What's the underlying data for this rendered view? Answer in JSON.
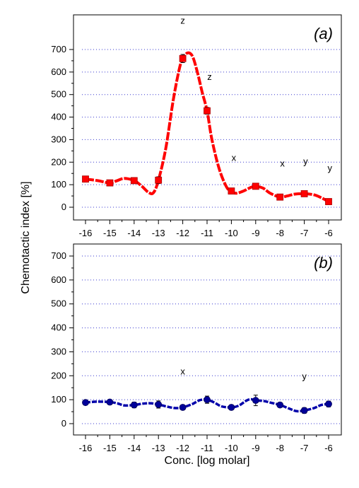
{
  "chart_data": [
    {
      "type": "line",
      "panel_label": "(a)",
      "ylabel": "Chemotactic index [%]",
      "xlabel": "Conc. [log molar]",
      "x_ticks": [
        "-16",
        "-15",
        "-14",
        "-13",
        "-12",
        "-11",
        "-10",
        "-9",
        "-8",
        "-7",
        "-6"
      ],
      "y_ticks": [
        "0",
        "100",
        "200",
        "300",
        "400",
        "500",
        "600",
        "700"
      ],
      "xlim": [
        -16.3,
        -5.6
      ],
      "ylim": [
        -50,
        750
      ],
      "grid": "horizontal-dotted",
      "series_color": "#ff0000",
      "marker_color": "#ff0000",
      "marker": "square",
      "points": [
        {
          "x": -16,
          "y": 125,
          "err": 10
        },
        {
          "x": -15,
          "y": 108,
          "err": 10
        },
        {
          "x": -14,
          "y": 118,
          "err": 8
        },
        {
          "x": -13,
          "y": 120,
          "err": 15
        },
        {
          "x": -12,
          "y": 660,
          "err": 18
        },
        {
          "x": -11,
          "y": 428,
          "err": 15
        },
        {
          "x": -10,
          "y": 72,
          "err": 12
        },
        {
          "x": -9,
          "y": 93,
          "err": 12
        },
        {
          "x": -8,
          "y": 45,
          "err": 12
        },
        {
          "x": -7,
          "y": 60,
          "err": 8
        },
        {
          "x": -6,
          "y": 25,
          "err": 8
        }
      ],
      "curve": [
        [
          -16,
          125
        ],
        [
          -15.5,
          118
        ],
        [
          -15,
          108
        ],
        [
          -14.7,
          118
        ],
        [
          -14.4,
          128
        ],
        [
          -14,
          118
        ],
        [
          -13.7,
          95
        ],
        [
          -13.4,
          65
        ],
        [
          -13.2,
          65
        ],
        [
          -13,
          120
        ],
        [
          -12.7,
          260
        ],
        [
          -12.4,
          470
        ],
        [
          -12.15,
          610
        ],
        [
          -12,
          660
        ],
        [
          -11.8,
          685
        ],
        [
          -11.6,
          670
        ],
        [
          -11.4,
          600
        ],
        [
          -11.2,
          510
        ],
        [
          -11,
          428
        ],
        [
          -10.8,
          300
        ],
        [
          -10.5,
          170
        ],
        [
          -10.2,
          90
        ],
        [
          -10,
          70
        ],
        [
          -9.8,
          62
        ],
        [
          -9.5,
          72
        ],
        [
          -9.2,
          88
        ],
        [
          -9,
          93
        ],
        [
          -8.7,
          85
        ],
        [
          -8.4,
          62
        ],
        [
          -8,
          45
        ],
        [
          -7.7,
          50
        ],
        [
          -7.4,
          58
        ],
        [
          -7,
          60
        ],
        [
          -6.6,
          55
        ],
        [
          -6.3,
          42
        ],
        [
          -6,
          25
        ]
      ],
      "annotations": [
        {
          "text": "z",
          "x": -12,
          "y": 815
        },
        {
          "text": "z",
          "x": -10.9,
          "y": 565
        },
        {
          "text": "x",
          "x": -9.9,
          "y": 205
        },
        {
          "text": "x",
          "x": -7.9,
          "y": 180
        },
        {
          "text": "y",
          "x": -6.95,
          "y": 190
        },
        {
          "text": "y",
          "x": -5.95,
          "y": 160
        }
      ]
    },
    {
      "type": "line",
      "panel_label": "(b)",
      "x_ticks": [
        "-16",
        "-15",
        "-14",
        "-13",
        "-12",
        "-11",
        "-10",
        "-9",
        "-8",
        "-7",
        "-6"
      ],
      "y_ticks": [
        "0",
        "100",
        "200",
        "300",
        "400",
        "500",
        "600",
        "700"
      ],
      "xlim": [
        -16.3,
        -5.6
      ],
      "ylim": [
        -50,
        750
      ],
      "grid": "horizontal-dotted",
      "series_color": "#0000aa",
      "marker_color": "#000099",
      "marker": "circle",
      "points": [
        {
          "x": -16,
          "y": 88,
          "err": 10
        },
        {
          "x": -15,
          "y": 90,
          "err": 8
        },
        {
          "x": -14,
          "y": 78,
          "err": 12
        },
        {
          "x": -13,
          "y": 80,
          "err": 15
        },
        {
          "x": -12,
          "y": 68,
          "err": 5
        },
        {
          "x": -11,
          "y": 100,
          "err": 15
        },
        {
          "x": -10,
          "y": 68,
          "err": 8
        },
        {
          "x": -9,
          "y": 97,
          "err": 22
        },
        {
          "x": -8,
          "y": 78,
          "err": 10
        },
        {
          "x": -7,
          "y": 55,
          "err": 12
        },
        {
          "x": -6,
          "y": 82,
          "err": 12
        }
      ],
      "curve": [
        [
          -16,
          88
        ],
        [
          -15.5,
          92
        ],
        [
          -15,
          90
        ],
        [
          -14.7,
          85
        ],
        [
          -14.4,
          76
        ],
        [
          -14,
          78
        ],
        [
          -13.6,
          84
        ],
        [
          -13.3,
          85
        ],
        [
          -13,
          80
        ],
        [
          -12.6,
          70
        ],
        [
          -12.3,
          65
        ],
        [
          -12,
          68
        ],
        [
          -11.6,
          82
        ],
        [
          -11.3,
          98
        ],
        [
          -11,
          100
        ],
        [
          -10.7,
          88
        ],
        [
          -10.4,
          72
        ],
        [
          -10,
          68
        ],
        [
          -9.7,
          75
        ],
        [
          -9.4,
          95
        ],
        [
          -9.2,
          102
        ],
        [
          -9,
          97
        ],
        [
          -8.7,
          95
        ],
        [
          -8.4,
          88
        ],
        [
          -8,
          78
        ],
        [
          -7.6,
          62
        ],
        [
          -7.3,
          52
        ],
        [
          -7,
          55
        ],
        [
          -6.6,
          65
        ],
        [
          -6.3,
          78
        ],
        [
          -6,
          82
        ]
      ],
      "annotations": [
        {
          "text": "x",
          "x": -12,
          "y": 205
        },
        {
          "text": "y",
          "x": -7,
          "y": 185
        }
      ]
    }
  ]
}
